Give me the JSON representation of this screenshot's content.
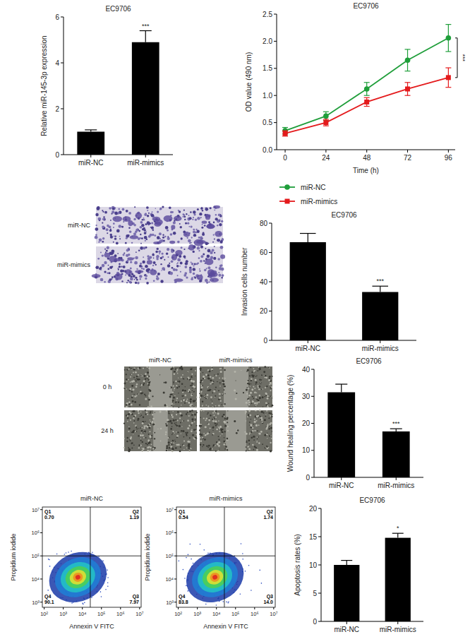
{
  "chart_data": [
    {
      "type": "bar",
      "title": "EC9706",
      "y_label": "Relative miR-145-3p expression",
      "categories": [
        "miR-NC",
        "miR-mimics"
      ],
      "values": [
        1.0,
        4.9
      ],
      "errors": [
        0.08,
        0.5
      ],
      "color": "#000000",
      "ylim": [
        0,
        6
      ],
      "yticks": [
        0,
        2,
        4,
        6
      ],
      "annotation": "***"
    },
    {
      "type": "line",
      "title": "EC9706",
      "x_label": "Time (h)",
      "y_label": "OD value (490 nm)",
      "x": [
        0,
        24,
        48,
        72,
        96
      ],
      "series": [
        {
          "name": "miR-NC",
          "color": "#1f9e3a",
          "marker": "circle",
          "values": [
            0.35,
            0.62,
            1.12,
            1.65,
            2.06
          ],
          "errors": [
            0.06,
            0.08,
            0.12,
            0.2,
            0.25
          ]
        },
        {
          "name": "miR-mimics",
          "color": "#e41a1c",
          "marker": "square",
          "values": [
            0.3,
            0.5,
            0.88,
            1.12,
            1.33
          ],
          "errors": [
            0.05,
            0.06,
            0.08,
            0.12,
            0.18
          ]
        }
      ],
      "xlim": [
        -5,
        100
      ],
      "xticks": [
        0,
        24,
        48,
        72,
        96
      ],
      "ylim": [
        0,
        2.5
      ],
      "yticks": [
        {
          "value": 0,
          "label": "0.0"
        },
        0.5,
        {
          "value": 1,
          "label": "1.0"
        },
        1.5,
        {
          "value": 2,
          "label": "2.0"
        },
        2.5
      ],
      "legend": "bottom",
      "annotation": "***"
    },
    {
      "type": "bar",
      "title": "EC9706",
      "y_label": "Invasion cells number",
      "categories": [
        "miR-NC",
        "miR-mimics"
      ],
      "values": [
        67,
        33
      ],
      "errors": [
        6,
        4
      ],
      "color": "#000000",
      "ylim": [
        0,
        80
      ],
      "yticks": [
        0,
        20,
        40,
        60,
        80
      ],
      "annotation": "***"
    },
    {
      "type": "bar",
      "title": "EC9706",
      "y_label": "Wound healing percentage (%)",
      "categories": [
        "miR-NC",
        "miR-mimics"
      ],
      "values": [
        31.5,
        17
      ],
      "errors": [
        3,
        1
      ],
      "color": "#000000",
      "ylim": [
        0,
        40
      ],
      "yticks": [
        0,
        10,
        20,
        30,
        40
      ],
      "annotation": "***"
    },
    {
      "type": "density",
      "title": "miR-NC",
      "x_label": "Annexin V FITC",
      "y_label": "Propidium iodide",
      "log": true,
      "xlim": [
        80,
        12000000
      ],
      "ylim": [
        600,
        13000000
      ],
      "xticks": [
        {
          "value": 100,
          "label": "10²"
        },
        {
          "value": 1000,
          "label": "10³"
        },
        {
          "value": 10000,
          "label": "10⁴"
        },
        {
          "value": 100000,
          "label": "10⁵"
        },
        {
          "value": 1000000,
          "label": "10⁶"
        },
        {
          "value": 10000000,
          "label": "10⁷"
        }
      ],
      "yticks": [
        {
          "value": 1000,
          "label": "10³"
        },
        {
          "value": 10000,
          "label": "10⁴"
        },
        {
          "value": 100000,
          "label": "10⁵"
        },
        {
          "value": 1000000,
          "label": "10⁶"
        },
        {
          "value": 10000000,
          "label": "10⁷"
        }
      ],
      "quadrant_gates": {
        "x": 26000,
        "y": 100000
      },
      "quadrants": {
        "names": [
          "Q1",
          "Q2",
          "Q3",
          "Q4"
        ],
        "values": [
          0.7,
          1.19,
          7.97,
          90.1
        ],
        "value_labels": [
          "0.70",
          "1.19",
          "7.97",
          "90.1"
        ]
      }
    },
    {
      "type": "density",
      "title": "miR-mimics",
      "x_label": "Annexin V FITC",
      "y_label": "Propidium iodide",
      "log": true,
      "xlim": [
        80,
        12000000
      ],
      "ylim": [
        600,
        13000000
      ],
      "xticks": [
        {
          "value": 100,
          "label": "10²"
        },
        {
          "value": 1000,
          "label": "10³"
        },
        {
          "value": 10000,
          "label": "10⁴"
        },
        {
          "value": 100000,
          "label": "10⁵"
        },
        {
          "value": 1000000,
          "label": "10⁶"
        },
        {
          "value": 10000000,
          "label": "10⁷"
        }
      ],
      "yticks": [
        {
          "value": 1000,
          "label": "10³"
        },
        {
          "value": 10000,
          "label": "10⁴"
        },
        {
          "value": 100000,
          "label": "10⁵"
        },
        {
          "value": 1000000,
          "label": "10⁶"
        },
        {
          "value": 10000000,
          "label": "10⁷"
        }
      ],
      "quadrant_gates": {
        "x": 26000,
        "y": 100000
      },
      "quadrants": {
        "names": [
          "Q1",
          "Q2",
          "Q3",
          "Q4"
        ],
        "values": [
          0.54,
          1.74,
          14.0,
          83.8
        ],
        "value_labels": [
          "0.54",
          "1.74",
          "14.0",
          "83.8"
        ]
      }
    },
    {
      "type": "bar",
      "title": "EC9706",
      "y_label": "Apoptosis rates (%)",
      "categories": [
        "miR-NC",
        "miR-mimics"
      ],
      "values": [
        10,
        14.8
      ],
      "errors": [
        0.8,
        0.8
      ],
      "color": "#000000",
      "ylim": [
        0,
        20
      ],
      "yticks": [
        0,
        5,
        10,
        15,
        20
      ],
      "annotation": "*"
    }
  ],
  "images": {
    "transwell": {
      "row_labels": [
        "miR-NC",
        "miR-mimics"
      ]
    },
    "wound_healing": {
      "column_labels": [
        "miR-NC",
        "miR-mimics"
      ],
      "row_labels": [
        "0 h",
        "24 h"
      ]
    }
  }
}
